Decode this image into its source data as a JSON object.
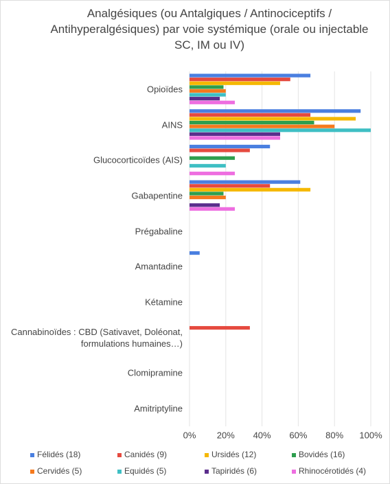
{
  "chart_data": {
    "type": "bar",
    "orientation": "horizontal",
    "title": "Analgésiques (ou Antalgiques / Antinociceptifs / Antihyperalgésiques) par voie systémique (orale ou injectable SC, IM ou IV)",
    "categories": [
      "Opioïdes",
      "AINS",
      "Glucocorticoïdes (AIS)",
      "Gabapentine",
      "Prégabaline",
      "Amantadine",
      "Kétamine",
      "Cannabinoïdes : CBD (Sativavet, Doléonat, formulations humaines…)",
      "Clomipramine",
      "Amitriptyline"
    ],
    "series": [
      {
        "name": "Félidés (18)",
        "color": "#4a7fe0",
        "values": [
          66.7,
          94.4,
          44.4,
          61.1,
          0,
          5.6,
          0,
          0,
          0,
          0
        ]
      },
      {
        "name": "Canidés (9)",
        "color": "#e54a3f",
        "values": [
          55.6,
          66.7,
          33.3,
          44.4,
          0,
          0,
          0,
          33.3,
          0,
          0
        ]
      },
      {
        "name": "Ursidés (12)",
        "color": "#f5b800",
        "values": [
          50,
          91.7,
          0,
          66.7,
          0,
          0,
          0,
          0,
          0,
          0
        ]
      },
      {
        "name": "Bovidés (16)",
        "color": "#2e9e4e",
        "values": [
          18.75,
          68.75,
          25,
          18.75,
          0,
          0,
          0,
          0,
          0,
          0
        ]
      },
      {
        "name": "Cervidés (5)",
        "color": "#f57a1e",
        "values": [
          20,
          80,
          0,
          20,
          0,
          0,
          0,
          0,
          0,
          0
        ]
      },
      {
        "name": "Equidés (5)",
        "color": "#3fbfc4",
        "values": [
          20,
          100,
          20,
          0,
          0,
          0,
          0,
          0,
          0,
          0
        ]
      },
      {
        "name": "Tapiridés (6)",
        "color": "#5b2e8c",
        "values": [
          16.7,
          50,
          0,
          16.7,
          0,
          0,
          0,
          0,
          0,
          0
        ]
      },
      {
        "name": "Rhinocérotidés (4)",
        "color": "#ee6ee0",
        "values": [
          25,
          50,
          25,
          25,
          0,
          0,
          0,
          0,
          0,
          0
        ]
      }
    ],
    "xlim": [
      0,
      100
    ],
    "xticks": [
      {
        "value": 0,
        "label": "0%"
      },
      {
        "value": 20,
        "label": "20%"
      },
      {
        "value": 40,
        "label": "40%"
      },
      {
        "value": 60,
        "label": "60%"
      },
      {
        "value": 80,
        "label": "80%"
      },
      {
        "value": 100,
        "label": "100%"
      }
    ],
    "legend": "bottom"
  }
}
